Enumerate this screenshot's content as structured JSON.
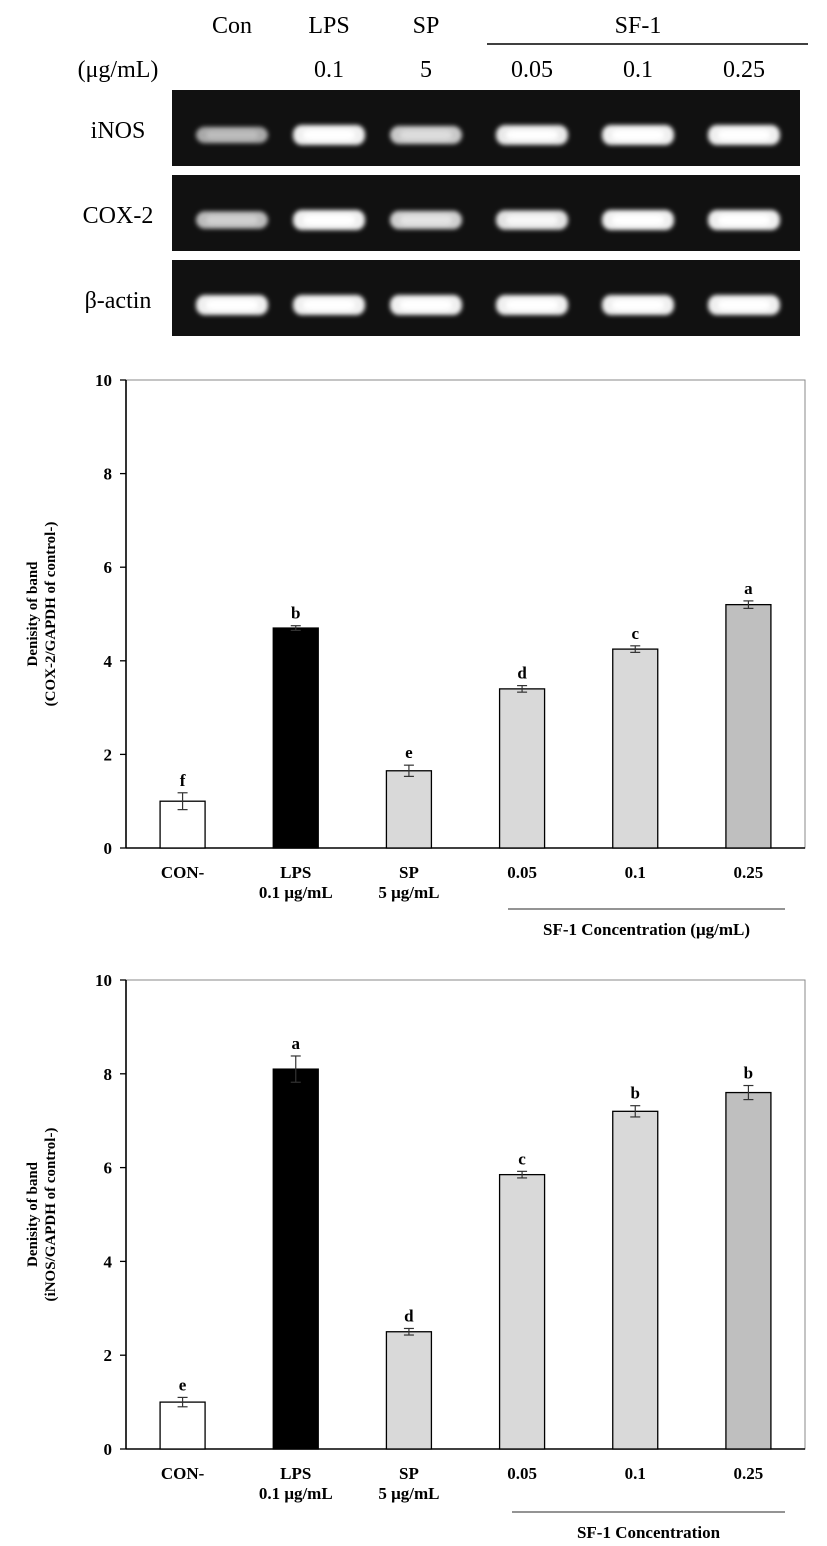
{
  "gel": {
    "lanes": [
      {
        "label": "Con",
        "dose": ""
      },
      {
        "label": "LPS",
        "dose": "0.1"
      },
      {
        "label": "SP",
        "dose": "5"
      },
      {
        "label": "",
        "dose": "0.05"
      },
      {
        "label": "",
        "dose": "0.1"
      },
      {
        "label": "",
        "dose": "0.25"
      }
    ],
    "group_label": "SF-1",
    "unit_label": "(μg/mL)",
    "rows": [
      {
        "label": "iNOS",
        "intensity": [
          0.45,
          1.0,
          0.7,
          0.95,
          1.0,
          1.0
        ]
      },
      {
        "label": "COX-2",
        "intensity": [
          0.6,
          1.0,
          0.75,
          0.9,
          1.0,
          1.0
        ]
      },
      {
        "label": "β-actin",
        "intensity": [
          1.0,
          1.0,
          1.0,
          1.0,
          1.0,
          1.0
        ]
      }
    ]
  },
  "chart_data": [
    {
      "type": "bar",
      "ylabel": [
        "Denisity of band",
        "(COX-2/GAPDH of control-)"
      ],
      "xlabel": "",
      "ylim": [
        0,
        10
      ],
      "yticks": [
        "0",
        "2",
        "4",
        "6",
        "8",
        "10"
      ],
      "categories": [
        [
          "CON-"
        ],
        [
          "LPS",
          "0.1 μg/mL"
        ],
        [
          "SP",
          "5 μg/mL"
        ],
        [
          "0.05"
        ],
        [
          "0.1"
        ],
        [
          "0.25"
        ]
      ],
      "values": [
        1.0,
        4.7,
        1.65,
        3.4,
        4.25,
        5.2
      ],
      "errors": [
        0.18,
        0.05,
        0.12,
        0.07,
        0.07,
        0.08
      ],
      "letters": [
        "f",
        "b",
        "e",
        "d",
        "c",
        "a"
      ],
      "colors": [
        "#ffffff",
        "#000000",
        "#d9d9d9",
        "#d9d9d9",
        "#d9d9d9",
        "#bfbfbf"
      ],
      "group_label": "SF-1 Concentration (μg/mL)"
    },
    {
      "type": "bar",
      "ylabel": [
        "Denisity of band",
        "(iNOS/GAPDH of control-)"
      ],
      "xlabel": "",
      "ylim": [
        0,
        10
      ],
      "yticks": [
        "0",
        "2",
        "4",
        "6",
        "8",
        "10"
      ],
      "categories": [
        [
          "CON-"
        ],
        [
          "LPS",
          "0.1 μg/mL"
        ],
        [
          "SP",
          "5 μg/mL"
        ],
        [
          "0.05"
        ],
        [
          "0.1"
        ],
        [
          "0.25"
        ]
      ],
      "values": [
        1.0,
        8.1,
        2.5,
        5.85,
        7.2,
        7.6
      ],
      "errors": [
        0.1,
        0.28,
        0.07,
        0.07,
        0.12,
        0.15
      ],
      "letters": [
        "e",
        "a",
        "d",
        "c",
        "b",
        "b"
      ],
      "colors": [
        "#ffffff",
        "#000000",
        "#d9d9d9",
        "#d9d9d9",
        "#d9d9d9",
        "#bfbfbf"
      ],
      "group_label": "SF-1 Concentration"
    }
  ]
}
